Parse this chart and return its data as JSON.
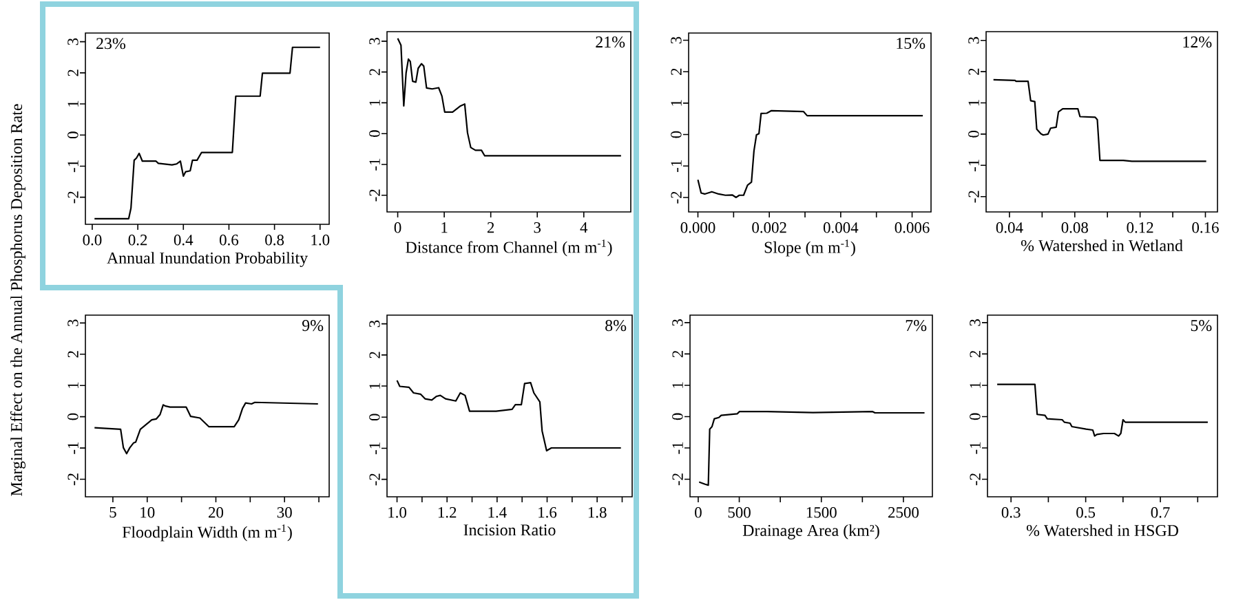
{
  "chart_data": [
    {
      "type": "line",
      "color": "#000000",
      "ylabel": "Marginal Effect on the Annual Phosphorus Deposition Rate",
      "xlabel": "Annual Inundation Probability",
      "annotations": [
        "23%"
      ],
      "x": [
        0.01,
        0.16,
        0.17,
        0.184,
        0.194,
        0.206,
        0.22,
        0.28,
        0.29,
        0.35,
        0.37,
        0.387,
        0.4,
        0.41,
        0.43,
        0.44,
        0.46,
        0.48,
        0.615,
        0.63,
        0.737,
        0.747,
        0.868,
        0.879,
        1.0
      ],
      "values": [
        -2.69,
        -2.69,
        -2.35,
        -0.81,
        -0.74,
        -0.59,
        -0.84,
        -0.84,
        -0.91,
        -0.96,
        -0.93,
        -0.84,
        -1.32,
        -1.18,
        -1.15,
        -0.81,
        -0.81,
        -0.56,
        -0.56,
        1.25,
        1.25,
        1.99,
        1.99,
        2.82,
        2.82
      ],
      "xlim": [
        -0.03,
        1.04
      ],
      "ylim": [
        -2.87,
        3.28
      ],
      "xticks": [
        {
          "value": 0,
          "label": "0.0"
        },
        {
          "value": 0.2,
          "label": "0.2"
        },
        {
          "value": 0.4,
          "label": "0.4"
        },
        {
          "value": 0.6,
          "label": "0.6"
        },
        {
          "value": 0.8,
          "label": "0.8"
        },
        {
          "value": 1,
          "label": "1.0"
        }
      ],
      "yticks": [
        -2,
        -1,
        0,
        1,
        2,
        3
      ]
    },
    {
      "type": "line",
      "color": "#000000",
      "xlabel": "Distance from Channel (m m$^{-1}$)",
      "annotations": [
        "21%"
      ],
      "x": [
        0,
        0.07,
        0.13,
        0.18,
        0.23,
        0.27,
        0.32,
        0.39,
        0.44,
        0.51,
        0.56,
        0.62,
        0.74,
        0.88,
        0.95,
        1.01,
        1.18,
        1.35,
        1.44,
        1.5,
        1.57,
        1.67,
        1.8,
        1.87,
        4.8
      ],
      "values": [
        3.09,
        2.87,
        0.9,
        1.97,
        2.42,
        2.34,
        1.7,
        1.67,
        2.12,
        2.27,
        2.19,
        1.48,
        1.45,
        1.49,
        1.22,
        0.7,
        0.7,
        0.9,
        0.96,
        0.03,
        -0.45,
        -0.54,
        -0.54,
        -0.72,
        -0.72
      ],
      "xlim": [
        -0.23,
        5.01
      ],
      "ylim": [
        -2.54,
        3.31
      ],
      "xticks": [
        0,
        1,
        2,
        3,
        4
      ],
      "yticks": [
        -2,
        -1,
        0,
        1,
        2,
        3
      ]
    },
    {
      "type": "line",
      "color": "#000000",
      "xlabel": "Slope (m m$^{-1}$)",
      "annotations": [
        "15%"
      ],
      "x": [
        0,
        9e-05,
        0.00019,
        0.00039,
        0.00058,
        0.00077,
        0.00096,
        0.00107,
        0.00116,
        0.00128,
        0.00139,
        0.0015,
        0.00157,
        0.00164,
        0.00171,
        0.00177,
        0.00193,
        0.00206,
        0.00296,
        0.00306,
        0.0063
      ],
      "values": [
        -1.44,
        -1.86,
        -1.89,
        -1.82,
        -1.89,
        -1.93,
        -1.92,
        -2.0,
        -1.93,
        -1.93,
        -1.61,
        -1.51,
        -0.52,
        -0.01,
        0.03,
        0.67,
        0.68,
        0.76,
        0.73,
        0.6,
        0.6
      ],
      "xlim": [
        -0.00026,
        0.00653
      ],
      "ylim": [
        -2.46,
        3.23
      ],
      "xticks": [
        {
          "value": 0,
          "label": "0.000"
        },
        {
          "value": 0.001,
          "label": null
        },
        {
          "value": 0.002,
          "label": "0.002"
        },
        {
          "value": 0.003,
          "label": null
        },
        {
          "value": 0.004,
          "label": "0.004"
        },
        {
          "value": 0.005,
          "label": null
        },
        {
          "value": 0.006,
          "label": "0.006"
        }
      ],
      "yticks": [
        -2,
        -1,
        0,
        1,
        2,
        3
      ]
    },
    {
      "type": "line",
      "color": "#000000",
      "xlabel": "% Watershed in Wetland",
      "annotations": [
        "12%"
      ],
      "x": [
        0.0302,
        0.0434,
        0.044,
        0.0514,
        0.053,
        0.0555,
        0.0567,
        0.0593,
        0.0607,
        0.0636,
        0.0652,
        0.0686,
        0.07,
        0.0726,
        0.0819,
        0.0832,
        0.0925,
        0.0938,
        0.0954,
        0.1097,
        0.115,
        0.1605
      ],
      "values": [
        1.74,
        1.72,
        1.69,
        1.69,
        1.07,
        1.04,
        0.16,
        0.01,
        -0.03,
        0.0,
        0.19,
        0.22,
        0.71,
        0.81,
        0.81,
        0.56,
        0.54,
        0.46,
        -0.84,
        -0.84,
        -0.87,
        -0.87
      ],
      "xlim": [
        0.0257,
        0.1674
      ],
      "ylim": [
        -2.49,
        3.28
      ],
      "xticks": [
        0.04,
        {
          "value": 0.06,
          "label": null
        },
        0.08,
        {
          "value": 0.1,
          "label": null
        },
        0.12,
        {
          "value": 0.14,
          "label": null
        },
        0.16
      ],
      "yticks": [
        -2,
        -1,
        0,
        1,
        2,
        3
      ]
    },
    {
      "type": "line",
      "color": "#000000",
      "xlabel": "Floodplain Width (m m$^{-1}$)",
      "annotations": [
        "9%"
      ],
      "x": [
        2.33,
        6.13,
        6.53,
        7.0,
        7.47,
        8.0,
        8.33,
        9.0,
        9.67,
        10.67,
        11.33,
        11.87,
        12.33,
        12.67,
        13.33,
        15.67,
        16.33,
        17.67,
        19.0,
        21.33,
        22.67,
        23.33,
        23.87,
        24.33,
        25.2,
        25.67,
        34.87
      ],
      "values": [
        -0.35,
        -0.4,
        -0.99,
        -1.18,
        -0.99,
        -0.84,
        -0.81,
        -0.4,
        -0.28,
        -0.1,
        -0.07,
        0.07,
        0.38,
        0.34,
        0.31,
        0.31,
        0.01,
        -0.04,
        -0.32,
        -0.32,
        -0.32,
        -0.1,
        0.26,
        0.44,
        0.41,
        0.46,
        0.41
      ],
      "xlim": [
        1,
        36.5
      ],
      "ylim": [
        -2.56,
        3.25
      ],
      "xticks": [
        5,
        10,
        {
          "value": 15,
          "label": null
        },
        20,
        {
          "value": 25,
          "label": null
        },
        30,
        {
          "value": 35,
          "label": null
        }
      ],
      "yticks": [
        -2,
        -1,
        0,
        1,
        2,
        3
      ]
    },
    {
      "type": "line",
      "color": "#000000",
      "xlabel": "Incision Ratio",
      "annotations": [
        "8%"
      ],
      "x": [
        1.0,
        1.011,
        1.048,
        1.066,
        1.094,
        1.112,
        1.139,
        1.158,
        1.173,
        1.194,
        1.235,
        1.253,
        1.272,
        1.29,
        1.323,
        1.396,
        1.46,
        1.473,
        1.497,
        1.51,
        1.534,
        1.547,
        1.571,
        1.58,
        1.598,
        1.617,
        1.895
      ],
      "values": [
        1.18,
        0.99,
        0.96,
        0.78,
        0.74,
        0.59,
        0.55,
        0.67,
        0.7,
        0.59,
        0.52,
        0.78,
        0.7,
        0.19,
        0.19,
        0.19,
        0.25,
        0.4,
        0.4,
        1.08,
        1.11,
        0.78,
        0.49,
        -0.44,
        -1.08,
        -0.99,
        -0.99
      ],
      "xlim": [
        0.96,
        1.94
      ],
      "ylim": [
        -2.56,
        3.28
      ],
      "xticks": [
        {
          "value": 1.0,
          "label": "1.0"
        },
        {
          "value": 1.1,
          "label": null
        },
        {
          "value": 1.2,
          "label": "1.2"
        },
        {
          "value": 1.3,
          "label": null
        },
        {
          "value": 1.4,
          "label": "1.4"
        },
        {
          "value": 1.5,
          "label": null
        },
        {
          "value": 1.6,
          "label": "1.6"
        },
        {
          "value": 1.7,
          "label": null
        },
        {
          "value": 1.8,
          "label": "1.8"
        },
        {
          "value": 1.9,
          "label": null
        }
      ],
      "yticks": [
        -2,
        -1,
        0,
        1,
        2,
        3
      ]
    },
    {
      "type": "line",
      "color": "#000000",
      "xlabel": "Drainage Area (km²)",
      "annotations": [
        "7%"
      ],
      "x": [
        11,
        84,
        123,
        140,
        168,
        196,
        252,
        280,
        475,
        503,
        839,
        1398,
        2125,
        2153,
        2757
      ],
      "values": [
        -2.09,
        -2.16,
        -2.19,
        -0.4,
        -0.32,
        -0.07,
        -0.03,
        0.04,
        0.09,
        0.16,
        0.16,
        0.13,
        0.16,
        0.12,
        0.12
      ],
      "xlim": [
        -100,
        2853
      ],
      "ylim": [
        -2.56,
        3.24
      ],
      "xticks": [
        0,
        500,
        {
          "value": 1000,
          "label": null
        },
        1500,
        {
          "value": 2000,
          "label": null
        },
        2500
      ],
      "yticks": [
        -2,
        -1,
        0,
        1,
        2,
        3
      ]
    },
    {
      "type": "line",
      "color": "#000000",
      "xlabel": "% Watershed in HSGD",
      "annotations": [
        "5%"
      ],
      "x": [
        0.263,
        0.364,
        0.37,
        0.391,
        0.397,
        0.437,
        0.443,
        0.458,
        0.463,
        0.501,
        0.519,
        0.524,
        0.53,
        0.548,
        0.577,
        0.588,
        0.594,
        0.6,
        0.606,
        0.827
      ],
      "values": [
        1.03,
        1.03,
        0.07,
        0.04,
        -0.07,
        -0.1,
        -0.18,
        -0.21,
        -0.32,
        -0.4,
        -0.43,
        -0.62,
        -0.57,
        -0.54,
        -0.54,
        -0.62,
        -0.54,
        -0.1,
        -0.18,
        -0.18
      ],
      "xlim": [
        0.237,
        0.853
      ],
      "ylim": [
        -2.56,
        3.24
      ],
      "xticks": [
        0.3,
        {
          "value": 0.4,
          "label": null
        },
        0.5,
        {
          "value": 0.6,
          "label": null
        },
        0.7,
        {
          "value": 0.8,
          "label": null
        }
      ],
      "yticks": [
        -2,
        -1,
        0,
        1,
        2,
        3
      ]
    }
  ]
}
